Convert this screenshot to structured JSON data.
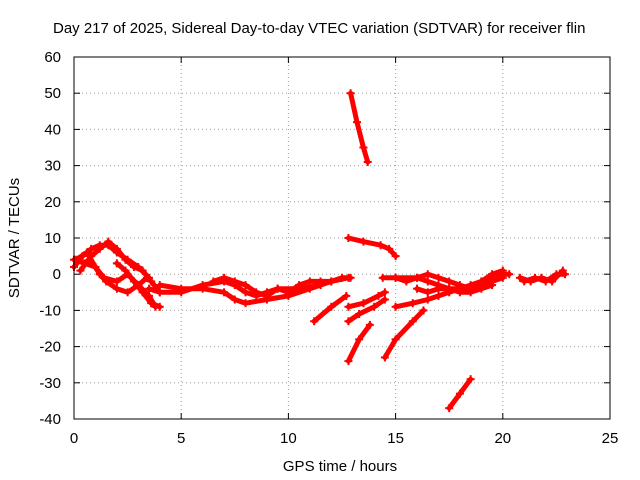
{
  "chart_data": {
    "type": "scatter",
    "title": "Day 217 of 2025, Sidereal Day-to-day VTEC variation (SDTVAR) for receiver flin",
    "xlabel": "GPS time / hours",
    "ylabel": "SDTVAR / TECUs",
    "xlim": [
      0,
      25
    ],
    "ylim": [
      -40,
      60
    ],
    "xticks": [
      0,
      5,
      10,
      15,
      20,
      25
    ],
    "yticks": [
      -40,
      -30,
      -20,
      -10,
      0,
      10,
      20,
      30,
      40,
      50,
      60
    ],
    "grid": true,
    "series_color": "#ff0000",
    "segments": [
      [
        [
          0,
          4
        ],
        [
          0.5,
          3
        ],
        [
          1.0,
          2
        ],
        [
          1.2,
          0
        ],
        [
          1.5,
          -2
        ],
        [
          2.0,
          -4
        ],
        [
          2.5,
          -5
        ],
        [
          3.0,
          -3
        ],
        [
          3.4,
          -1
        ]
      ],
      [
        [
          0,
          2
        ],
        [
          0.4,
          5
        ],
        [
          0.8,
          7
        ],
        [
          1.2,
          8
        ],
        [
          1.6,
          8
        ],
        [
          2.0,
          6
        ],
        [
          2.5,
          4
        ],
        [
          3.0,
          2
        ],
        [
          3.5,
          -1
        ]
      ],
      [
        [
          0.1,
          4
        ],
        [
          0.6,
          6
        ],
        [
          1.0,
          2
        ],
        [
          1.4,
          -1
        ],
        [
          2.0,
          -2
        ],
        [
          2.5,
          0
        ],
        [
          3.0,
          -3
        ],
        [
          3.5,
          -6
        ],
        [
          3.8,
          -9
        ]
      ],
      [
        [
          0.3,
          1
        ],
        [
          0.8,
          5
        ],
        [
          1.2,
          7
        ],
        [
          1.6,
          9
        ],
        [
          2.0,
          7
        ],
        [
          2.4,
          4
        ],
        [
          2.8,
          2
        ],
        [
          3.2,
          1
        ],
        [
          3.6,
          -2
        ],
        [
          4.0,
          -5
        ]
      ],
      [
        [
          2.0,
          3
        ],
        [
          2.4,
          1
        ],
        [
          2.8,
          -2
        ],
        [
          3.2,
          -5
        ],
        [
          3.6,
          -8
        ],
        [
          4.0,
          -9
        ]
      ],
      [
        [
          3.5,
          -4
        ],
        [
          4.0,
          -5
        ],
        [
          5.0,
          -5
        ],
        [
          6.0,
          -3
        ],
        [
          7.0,
          -2
        ],
        [
          7.5,
          -3
        ],
        [
          8.0,
          -5
        ],
        [
          8.5,
          -6
        ],
        [
          9.0,
          -5
        ],
        [
          9.5,
          -4
        ],
        [
          10.0,
          -5
        ],
        [
          10.5,
          -3
        ],
        [
          11.0,
          -2
        ],
        [
          11.5,
          -2
        ],
        [
          12.0,
          -2
        ],
        [
          12.5,
          -1
        ],
        [
          12.9,
          -1
        ]
      ],
      [
        [
          4.0,
          -3
        ],
        [
          5.0,
          -4
        ],
        [
          6.0,
          -4
        ],
        [
          7.0,
          -5
        ],
        [
          7.5,
          -7
        ],
        [
          8.0,
          -8
        ],
        [
          9.0,
          -7
        ],
        [
          10.0,
          -6
        ],
        [
          11.0,
          -4
        ],
        [
          12.0,
          -2
        ],
        [
          12.8,
          -1
        ]
      ],
      [
        [
          6.5,
          -2
        ],
        [
          7.0,
          -1
        ],
        [
          7.5,
          -2
        ],
        [
          8.0,
          -3
        ],
        [
          8.5,
          -5
        ],
        [
          9.0,
          -6
        ],
        [
          9.5,
          -4
        ],
        [
          10.5,
          -4
        ],
        [
          11.5,
          -3
        ]
      ],
      [
        [
          11.2,
          -13
        ],
        [
          12.0,
          -9
        ],
        [
          12.7,
          -6
        ]
      ],
      [
        [
          12.9,
          50
        ],
        [
          13.2,
          42
        ],
        [
          13.5,
          35
        ],
        [
          13.7,
          31
        ]
      ],
      [
        [
          12.8,
          10
        ],
        [
          13.5,
          9
        ],
        [
          14.3,
          8
        ],
        [
          14.7,
          7
        ],
        [
          15.0,
          5
        ]
      ],
      [
        [
          12.8,
          -24
        ],
        [
          13.3,
          -18
        ],
        [
          13.8,
          -14
        ]
      ],
      [
        [
          12.8,
          -9
        ],
        [
          13.5,
          -8
        ],
        [
          14.2,
          -6
        ],
        [
          14.5,
          -5
        ]
      ],
      [
        [
          12.8,
          -13
        ],
        [
          13.3,
          -11
        ],
        [
          14.0,
          -9
        ],
        [
          14.5,
          -7
        ]
      ],
      [
        [
          14.5,
          -23
        ],
        [
          15.0,
          -18
        ],
        [
          15.8,
          -13
        ],
        [
          16.3,
          -10
        ]
      ],
      [
        [
          14.4,
          -1
        ],
        [
          15.0,
          -1
        ],
        [
          15.5,
          -2
        ],
        [
          16.0,
          -1
        ],
        [
          16.5,
          -2
        ],
        [
          17.0,
          -3
        ],
        [
          17.5,
          -4
        ],
        [
          18.0,
          -4
        ],
        [
          18.5,
          -4
        ],
        [
          19.0,
          -3
        ],
        [
          19.5,
          -2
        ],
        [
          20.0,
          -1
        ]
      ],
      [
        [
          15.0,
          -9
        ],
        [
          15.8,
          -8
        ],
        [
          16.5,
          -7
        ],
        [
          17.0,
          -6
        ],
        [
          17.5,
          -5
        ],
        [
          18.0,
          -4
        ],
        [
          18.5,
          -3
        ],
        [
          19.0,
          -2
        ],
        [
          19.5,
          0
        ],
        [
          20.0,
          1
        ]
      ],
      [
        [
          15.0,
          -1
        ],
        [
          16.0,
          -1
        ],
        [
          16.5,
          0
        ],
        [
          17.0,
          -1
        ],
        [
          17.5,
          -2
        ],
        [
          18.0,
          -3
        ],
        [
          18.5,
          -4
        ],
        [
          19.0,
          -2
        ],
        [
          19.5,
          -1
        ],
        [
          20.0,
          0
        ],
        [
          20.3,
          0
        ]
      ],
      [
        [
          16.0,
          -4
        ],
        [
          16.5,
          -5
        ],
        [
          17.0,
          -4
        ],
        [
          17.5,
          -4
        ],
        [
          18.0,
          -5
        ],
        [
          18.5,
          -5
        ],
        [
          19.0,
          -4
        ],
        [
          19.5,
          -3
        ]
      ],
      [
        [
          17.5,
          -37
        ],
        [
          18.0,
          -33
        ],
        [
          18.5,
          -29
        ]
      ],
      [
        [
          21.0,
          -2
        ],
        [
          21.5,
          -1
        ],
        [
          22.0,
          -2
        ],
        [
          22.5,
          0
        ],
        [
          22.9,
          0
        ]
      ],
      [
        [
          20.8,
          -1
        ],
        [
          21.3,
          -2
        ],
        [
          21.8,
          -1
        ],
        [
          22.3,
          -2
        ],
        [
          22.8,
          1
        ]
      ]
    ]
  }
}
